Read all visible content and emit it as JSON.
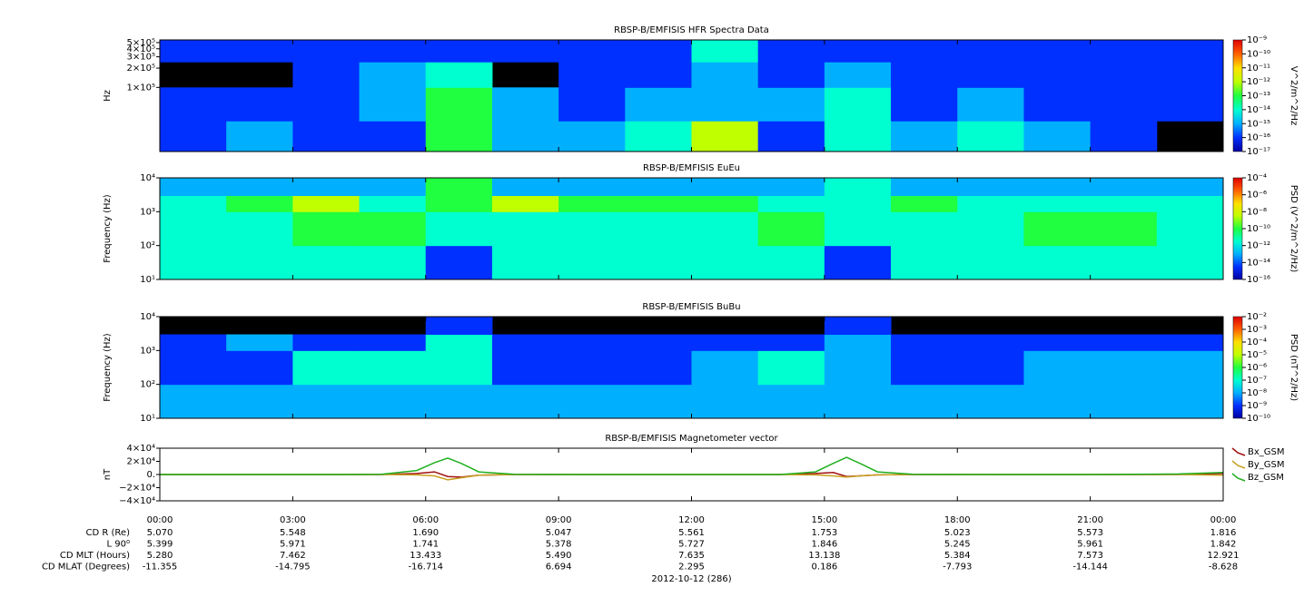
{
  "chart_data": [
    {
      "type": "spectrogram",
      "title": "RBSP-B/EMFISIS  HFR Spectra Data",
      "ylabel": "Hz",
      "zlabel": "V^2/m^2/Hz",
      "xlim": [
        0,
        24
      ],
      "xticks": [
        0,
        3,
        6,
        9,
        12,
        15,
        18,
        21,
        24
      ],
      "ylog": true,
      "ylim": [
        10000,
        550000
      ],
      "yticks": [
        {
          "value": 100000,
          "label": "1×10⁵"
        },
        {
          "value": 200000,
          "label": "2×10⁵"
        },
        {
          "value": 300000,
          "label": "3×10⁵"
        },
        {
          "value": 400000,
          "label": "4×10⁵"
        },
        {
          "value": 500000,
          "label": "5×10⁵"
        }
      ],
      "xbins": [
        0,
        1.5,
        3,
        4.5,
        6,
        7.5,
        9,
        10.5,
        12,
        13.5,
        15,
        16.5,
        18,
        19.5,
        21,
        22.5,
        24
      ],
      "ybins": [
        10000,
        30000,
        100000,
        250000,
        550000
      ],
      "z": [
        [
          1e-16,
          1e-15,
          1e-16,
          1e-16,
          1e-13,
          1e-15,
          1e-15,
          1e-14,
          1e-12,
          1e-16,
          1e-14,
          1e-15,
          1e-14,
          1e-15,
          1e-16,
          null
        ],
        [
          1e-16,
          1e-16,
          1e-16,
          1e-15,
          1e-13,
          1e-15,
          1e-16,
          1e-15,
          1e-15,
          1e-15,
          1e-14,
          1e-16,
          1e-15,
          1e-16,
          1e-16,
          1e-16
        ],
        [
          null,
          null,
          1e-16,
          1e-15,
          1e-14,
          null,
          1e-16,
          1e-16,
          1e-15,
          1e-16,
          1e-15,
          1e-16,
          1e-16,
          1e-16,
          1e-16,
          1e-16
        ],
        [
          1e-16,
          1e-16,
          1e-16,
          1e-16,
          1e-16,
          1e-16,
          1e-16,
          1e-16,
          1e-14,
          1e-16,
          1e-16,
          1e-16,
          1e-16,
          1e-16,
          1e-16,
          1e-16
        ]
      ],
      "zlim": [
        1e-17,
        1e-09
      ],
      "zticks": [
        {
          "value": 1e-09,
          "label": "10⁻⁹"
        },
        {
          "value": 1e-10,
          "label": "10⁻¹⁰"
        },
        {
          "value": 1e-11,
          "label": "10⁻¹¹"
        },
        {
          "value": 1e-12,
          "label": "10⁻¹²"
        },
        {
          "value": 1e-13,
          "label": "10⁻¹³"
        },
        {
          "value": 1e-14,
          "label": "10⁻¹⁴"
        },
        {
          "value": 1e-15,
          "label": "10⁻¹⁵"
        },
        {
          "value": 1e-16,
          "label": "10⁻¹⁶"
        },
        {
          "value": 1e-17,
          "label": "10⁻¹⁷"
        }
      ],
      "colormap": [
        "#0000a0",
        "#0030ff",
        "#00b0ff",
        "#00ffd0",
        "#20ff40",
        "#c0ff00",
        "#ffe000",
        "#ff6000",
        "#e00000"
      ],
      "background": "#000000"
    },
    {
      "type": "spectrogram",
      "title": "RBSP-B/EMFISIS  EuEu",
      "ylabel": "Frequency (Hz)",
      "zlabel": "PSD (V^2/m^2/Hz)",
      "xlim": [
        0,
        24
      ],
      "xticks": [
        0,
        3,
        6,
        9,
        12,
        15,
        18,
        21,
        24
      ],
      "ylog": true,
      "ylim": [
        10,
        10000
      ],
      "yticks": [
        {
          "value": 10,
          "label": "10¹"
        },
        {
          "value": 100,
          "label": "10²"
        },
        {
          "value": 1000,
          "label": "10³"
        },
        {
          "value": 10000,
          "label": "10⁴"
        }
      ],
      "xbins": [
        0,
        1.5,
        3,
        4.5,
        6,
        7.5,
        9,
        10.5,
        12,
        13.5,
        15,
        16.5,
        18,
        19.5,
        21,
        22.5,
        24
      ],
      "ybins": [
        10,
        100,
        1000,
        3000,
        10000
      ],
      "z": [
        [
          1e-11,
          1e-11,
          1e-12,
          1e-11,
          1e-14,
          1e-12,
          1e-12,
          1e-12,
          1e-12,
          1e-12,
          1e-14,
          1e-11,
          1e-12,
          1e-11,
          1e-11,
          1e-12
        ],
        [
          1e-12,
          1e-11,
          1e-10,
          1e-10,
          1e-12,
          1e-11,
          1e-11,
          1e-11,
          1e-11,
          1e-10,
          1e-12,
          1e-11,
          1e-11,
          1e-10,
          1e-10,
          1e-11
        ],
        [
          1e-11,
          1e-10,
          1e-09,
          1e-11,
          1e-10,
          1e-09,
          1e-10,
          1e-10,
          1e-10,
          1e-11,
          1e-11,
          1e-10,
          1e-11,
          1e-11,
          1e-11,
          1e-11
        ],
        [
          1e-13,
          1e-13,
          1e-13,
          1e-13,
          1e-10,
          1e-13,
          1e-13,
          1e-13,
          1e-13,
          1e-13,
          1e-11,
          1e-13,
          1e-13,
          1e-13,
          1e-13,
          1e-13
        ]
      ],
      "zlim": [
        1e-16,
        0.0001
      ],
      "zticks": [
        {
          "value": 0.0001,
          "label": "10⁻⁴"
        },
        {
          "value": 1e-06,
          "label": "10⁻⁶"
        },
        {
          "value": 1e-08,
          "label": "10⁻⁸"
        },
        {
          "value": 1e-10,
          "label": "10⁻¹⁰"
        },
        {
          "value": 1e-12,
          "label": "10⁻¹²"
        },
        {
          "value": 1e-14,
          "label": "10⁻¹⁴"
        },
        {
          "value": 1e-16,
          "label": "10⁻¹⁶"
        }
      ],
      "colormap": [
        "#0000a0",
        "#0030ff",
        "#00b0ff",
        "#00ffd0",
        "#20ff40",
        "#c0ff00",
        "#ffe000",
        "#ff6000",
        "#e00000"
      ],
      "background": "#000000"
    },
    {
      "type": "spectrogram",
      "title": "RBSP-B/EMFISIS  BuBu",
      "ylabel": "Frequency (Hz)",
      "zlabel": "PSD (nT^2/Hz)",
      "xlim": [
        0,
        24
      ],
      "xticks": [
        0,
        3,
        6,
        9,
        12,
        15,
        18,
        21,
        24
      ],
      "ylog": true,
      "ylim": [
        10,
        10000
      ],
      "yticks": [
        {
          "value": 10,
          "label": "10¹"
        },
        {
          "value": 100,
          "label": "10²"
        },
        {
          "value": 1000,
          "label": "10³"
        },
        {
          "value": 10000,
          "label": "10⁴"
        }
      ],
      "xbins": [
        0,
        1.5,
        3,
        4.5,
        6,
        7.5,
        9,
        10.5,
        12,
        13.5,
        15,
        16.5,
        18,
        19.5,
        21,
        22.5,
        24
      ],
      "ybins": [
        10,
        100,
        1000,
        3000,
        10000
      ],
      "z": [
        [
          1e-08,
          1e-08,
          1e-08,
          1e-08,
          1e-08,
          1e-08,
          1e-08,
          1e-08,
          1e-08,
          1e-08,
          1e-08,
          1e-08,
          1e-08,
          1e-08,
          1e-08,
          1e-08
        ],
        [
          1e-09,
          1e-09,
          1e-07,
          1e-07,
          1e-07,
          1e-09,
          1e-09,
          1e-09,
          1e-08,
          1e-07,
          1e-08,
          1e-09,
          1e-09,
          1e-08,
          1e-08,
          1e-08
        ],
        [
          1e-09,
          1e-08,
          1e-09,
          1e-09,
          1e-07,
          1e-09,
          1e-09,
          1e-09,
          1e-09,
          1e-09,
          1e-08,
          1e-09,
          1e-09,
          1e-09,
          1e-09,
          1e-09
        ],
        [
          null,
          null,
          null,
          null,
          1e-09,
          null,
          null,
          null,
          null,
          null,
          1e-09,
          null,
          null,
          null,
          null,
          null
        ]
      ],
      "zlim": [
        1e-10,
        0.01
      ],
      "zticks": [
        {
          "value": 0.01,
          "label": "10⁻²"
        },
        {
          "value": 0.001,
          "label": "10⁻³"
        },
        {
          "value": 0.0001,
          "label": "10⁻⁴"
        },
        {
          "value": 1e-05,
          "label": "10⁻⁵"
        },
        {
          "value": 1e-06,
          "label": "10⁻⁶"
        },
        {
          "value": 1e-07,
          "label": "10⁻⁷"
        },
        {
          "value": 1e-08,
          "label": "10⁻⁸"
        },
        {
          "value": 1e-09,
          "label": "10⁻⁹"
        },
        {
          "value": 1e-10,
          "label": "10⁻¹⁰"
        }
      ],
      "colormap": [
        "#0000a0",
        "#0030ff",
        "#00b0ff",
        "#00ffd0",
        "#20ff40",
        "#c0ff00",
        "#ffe000",
        "#ff6000",
        "#e00000"
      ],
      "background": "#000000"
    },
    {
      "type": "line",
      "title": "RBSP-B/EMFISIS  Magnetometer vector",
      "ylabel": "nT",
      "xlabel": "2012-10-12 (286)",
      "xlim": [
        0,
        24
      ],
      "xticks": [
        {
          "value": 0,
          "label": "00:00"
        },
        {
          "value": 3,
          "label": "03:00"
        },
        {
          "value": 6,
          "label": "06:00"
        },
        {
          "value": 9,
          "label": "09:00"
        },
        {
          "value": 12,
          "label": "12:00"
        },
        {
          "value": 15,
          "label": "15:00"
        },
        {
          "value": 18,
          "label": "18:00"
        },
        {
          "value": 21,
          "label": "21:00"
        },
        {
          "value": 24,
          "label": "00:00"
        }
      ],
      "ylim": [
        -40000,
        40000
      ],
      "yticks": [
        {
          "value": 40000,
          "label": "4×10⁴"
        },
        {
          "value": 20000,
          "label": "2×10⁴"
        },
        {
          "value": 0,
          "label": "0."
        },
        {
          "value": -20000,
          "label": "−2×10⁴"
        },
        {
          "value": -40000,
          "label": "−4×10⁴"
        }
      ],
      "legend": "right-outside",
      "x": [
        0,
        2,
        4,
        5,
        5.8,
        6.2,
        6.5,
        6.8,
        7.2,
        8,
        10,
        12,
        14,
        14.8,
        15.2,
        15.5,
        15.8,
        16.2,
        17,
        19,
        21,
        23,
        24
      ],
      "series": [
        {
          "name": "Bx_GSM",
          "color": "#a01010",
          "values": [
            0,
            0,
            0,
            0,
            1500,
            4000,
            -3000,
            -4000,
            -1000,
            0,
            0,
            0,
            0,
            1500,
            3000,
            -3000,
            -2000,
            -500,
            0,
            0,
            0,
            0,
            1500
          ]
        },
        {
          "name": "By_GSM",
          "color": "#c8a020",
          "values": [
            0,
            0,
            0,
            0,
            -500,
            -2000,
            -8000,
            -5000,
            -1000,
            0,
            0,
            0,
            0,
            -500,
            -2000,
            -4000,
            -2000,
            -500,
            0,
            0,
            0,
            0,
            -1000
          ]
        },
        {
          "name": "Bz_GSM",
          "color": "#20b020",
          "values": [
            0,
            0,
            0,
            300,
            6000,
            18000,
            25000,
            17000,
            4000,
            300,
            0,
            0,
            0,
            4000,
            17000,
            26000,
            17000,
            4000,
            300,
            0,
            0,
            800,
            3000
          ]
        }
      ]
    }
  ],
  "ephemeris": {
    "rows": [
      {
        "label": "CD R (Re)",
        "values": [
          "5.070",
          "5.548",
          "1.690",
          "5.047",
          "5.561",
          "1.753",
          "5.023",
          "5.573",
          "1.816"
        ]
      },
      {
        "label": "L 90⁰",
        "values": [
          "5.399",
          "5.971",
          "1.741",
          "5.378",
          "5.727",
          "1.846",
          "5.245",
          "5.961",
          "1.842"
        ]
      },
      {
        "label": "CD MLT (Hours)",
        "values": [
          "5.280",
          "7.462",
          "13.433",
          "5.490",
          "7.635",
          "13.138",
          "5.384",
          "7.573",
          "12.921"
        ]
      },
      {
        "label": "CD MLAT (Degrees)",
        "values": [
          "-11.355",
          "-14.795",
          "-16.714",
          "6.694",
          "2.295",
          "0.186",
          "-7.793",
          "-14.144",
          "-8.628"
        ]
      }
    ]
  }
}
